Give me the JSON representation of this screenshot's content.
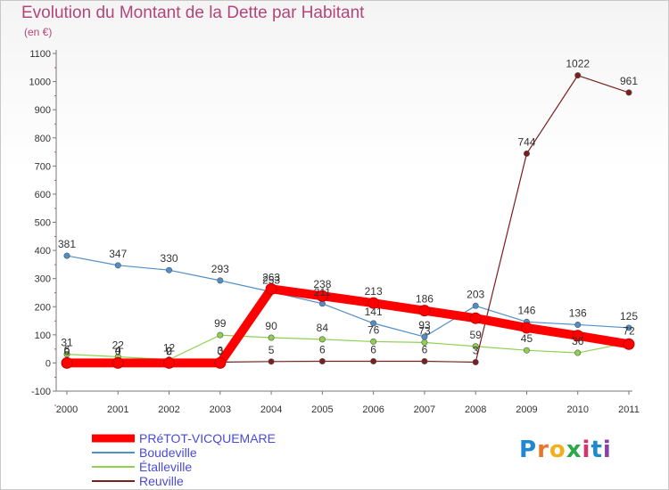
{
  "chart_data": {
    "type": "line",
    "title": "Evolution du Montant de la Dette par Habitant",
    "unit_label": "(en €)",
    "x": [
      "2000",
      "2001",
      "2002",
      "2003",
      "2004",
      "2005",
      "2006",
      "2007",
      "2008",
      "2009",
      "2010",
      "2011"
    ],
    "ylim": [
      -100,
      1100
    ],
    "yticks": [
      -100,
      0,
      100,
      200,
      300,
      400,
      500,
      600,
      700,
      800,
      900,
      1000,
      1100
    ],
    "series": [
      {
        "name": "PRéTOT-VICQUEMARE",
        "color": "#ff0000",
        "values": [
          0,
          0,
          0,
          0,
          263,
          238,
          213,
          186,
          159,
          125,
          97,
          67
        ],
        "labels": [
          "0",
          "0",
          "0",
          "0",
          "263",
          "238",
          "213",
          "186",
          "",
          "",
          "",
          ""
        ]
      },
      {
        "name": "Boudeville",
        "color": "#4f8ec9",
        "values": [
          381,
          347,
          330,
          293,
          253,
          211,
          141,
          93,
          203,
          146,
          136,
          125
        ],
        "labels": [
          "381",
          "347",
          "330",
          "293",
          "253",
          "211",
          "141",
          "93",
          "203",
          "146",
          "136",
          "125"
        ]
      },
      {
        "name": "Étalleville",
        "color": "#8fd14f",
        "values": [
          31,
          22,
          12,
          99,
          90,
          84,
          76,
          73,
          59,
          45,
          36,
          72
        ],
        "labels": [
          "31",
          "22",
          "12",
          "99",
          "90",
          "84",
          "76",
          "73",
          "59",
          "45",
          "36",
          "72"
        ]
      },
      {
        "name": "Reuville",
        "color": "#7b1e1e",
        "values": [
          6,
          4,
          2,
          3,
          5,
          6,
          6,
          6,
          3,
          744,
          1022,
          961
        ],
        "labels": [
          "6",
          "4",
          "2",
          "3",
          "5",
          "6",
          "6",
          "6",
          "3",
          "744",
          "1022",
          "961"
        ]
      }
    ]
  },
  "logo": {
    "text": "Proxiti"
  }
}
